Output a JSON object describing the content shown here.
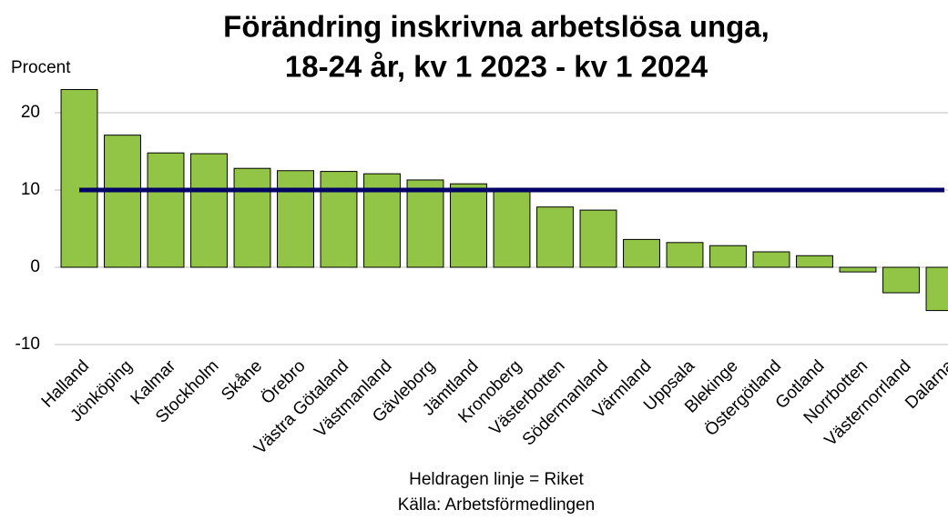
{
  "chart_data": {
    "type": "bar",
    "title": [
      "Förändring inskrivna arbetslösa unga,",
      "18-24 år, kv 1 2023 - kv 1 2024"
    ],
    "y_axis_label": "Procent",
    "categories": [
      "Halland",
      "Jönköping",
      "Kalmar",
      "Stockholm",
      "Skåne",
      "Örebro",
      "Västra Götaland",
      "Västmanland",
      "Gävleborg",
      "Jämtland",
      "Kronoberg",
      "Västerbotten",
      "Södermanland",
      "Värmland",
      "Uppsala",
      "Blekinge",
      "Östergötland",
      "Gotland",
      "Norrbotten",
      "Västernorrland",
      "Dalarna"
    ],
    "values": [
      23.0,
      17.1,
      14.8,
      14.7,
      12.8,
      12.5,
      12.4,
      12.1,
      11.3,
      10.8,
      10.1,
      7.8,
      7.4,
      3.6,
      3.2,
      2.8,
      2.0,
      1.5,
      -0.6,
      -3.3,
      -5.6
    ],
    "color": "#92c445",
    "reference_line": {
      "value": 10,
      "color": "#000066"
    },
    "ylim": [
      -10,
      25
    ],
    "yticks": [
      -10,
      0,
      10,
      20
    ],
    "grid": true,
    "notes": [
      "Heldragen linje = Riket",
      "Källa: Arbetsförmedlingen"
    ]
  }
}
